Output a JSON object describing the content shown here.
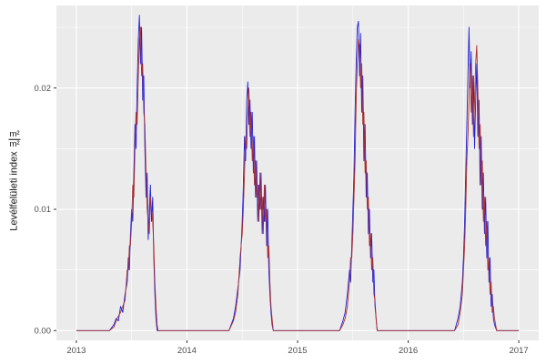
{
  "chart_data": {
    "type": "line",
    "title": "",
    "xlabel": "",
    "ylabel": "Levélfelületi index",
    "ylabel_unit_numerator": "m²",
    "ylabel_unit_denominator": "m²",
    "legend_position": "none",
    "grid": true,
    "panel_bg": "#EBEBEB",
    "grid_color": "#FFFFFF",
    "tick_color": "#333333",
    "label_color": "#4D4D4D",
    "xlim": [
      2012.82,
      2017.18
    ],
    "ylim": [
      -0.0008,
      0.0268
    ],
    "x_ticks": [
      2013,
      2014,
      2015,
      2016,
      2017
    ],
    "x_tick_labels": [
      "2013",
      "2014",
      "2015",
      "2016",
      "2017"
    ],
    "x_minor_ticks": [
      2013.5,
      2014.5,
      2015.5,
      2016.5
    ],
    "y_ticks": [
      0,
      0.01,
      0.02
    ],
    "y_tick_labels": [
      "0.00",
      "0.01",
      "0.02"
    ],
    "y_minor_ticks": [
      0.005,
      0.015,
      0.025
    ],
    "x": [
      2013.0,
      2013.3,
      2013.34,
      2013.36,
      2013.38,
      2013.4,
      2013.42,
      2013.44,
      2013.46,
      2013.47,
      2013.48,
      2013.49,
      2013.5,
      2013.51,
      2013.52,
      2013.53,
      2013.54,
      2013.55,
      2013.56,
      2013.57,
      2013.58,
      2013.59,
      2013.6,
      2013.61,
      2013.62,
      2013.63,
      2013.64,
      2013.65,
      2013.66,
      2013.67,
      2013.68,
      2013.69,
      2013.7,
      2013.71,
      2013.72,
      2013.73,
      2013.74,
      2014.38,
      2014.42,
      2014.44,
      2014.46,
      2014.48,
      2014.5,
      2014.51,
      2014.52,
      2014.53,
      2014.54,
      2014.55,
      2014.56,
      2014.57,
      2014.58,
      2014.59,
      2014.6,
      2014.61,
      2014.62,
      2014.63,
      2014.64,
      2014.65,
      2014.66,
      2014.67,
      2014.68,
      2014.69,
      2014.7,
      2014.71,
      2014.72,
      2014.73,
      2014.74,
      2014.75,
      2014.76,
      2014.77,
      2014.78,
      2015.38,
      2015.41,
      2015.43,
      2015.45,
      2015.47,
      2015.48,
      2015.49,
      2015.5,
      2015.51,
      2015.52,
      2015.53,
      2015.54,
      2015.55,
      2015.56,
      2015.57,
      2015.58,
      2015.59,
      2015.6,
      2015.61,
      2015.62,
      2015.63,
      2015.64,
      2015.65,
      2015.66,
      2015.67,
      2015.68,
      2015.69,
      2015.7,
      2015.71,
      2015.72,
      2016.42,
      2016.45,
      2016.47,
      2016.49,
      2016.5,
      2016.51,
      2016.52,
      2016.53,
      2016.54,
      2016.55,
      2016.56,
      2016.57,
      2016.58,
      2016.59,
      2016.6,
      2016.61,
      2016.62,
      2016.63,
      2016.64,
      2016.65,
      2016.66,
      2016.67,
      2016.68,
      2016.69,
      2016.7,
      2016.71,
      2016.72,
      2016.73,
      2016.74,
      2016.75,
      2016.76,
      2016.77,
      2016.78,
      2016.8,
      2017.0
    ],
    "series": [
      {
        "name": "blue",
        "color": "#2222D6",
        "values": [
          0,
          0,
          0.0005,
          0.001,
          0.0008,
          0.002,
          0.0015,
          0.003,
          0.004,
          0.006,
          0.005,
          0.008,
          0.01,
          0.009,
          0.013,
          0.017,
          0.015,
          0.02,
          0.024,
          0.026,
          0.022,
          0.025,
          0.019,
          0.021,
          0.015,
          0.011,
          0.013,
          0.0075,
          0.01,
          0.012,
          0.009,
          0.011,
          0.006,
          0.003,
          0.001,
          0,
          0,
          0,
          0.001,
          0.002,
          0.0035,
          0.005,
          0.009,
          0.012,
          0.016,
          0.014,
          0.019,
          0.0205,
          0.017,
          0.019,
          0.015,
          0.018,
          0.013,
          0.016,
          0.011,
          0.014,
          0.009,
          0.012,
          0.01,
          0.013,
          0.008,
          0.011,
          0.009,
          0.012,
          0.007,
          0.01,
          0.005,
          0.003,
          0.0015,
          0.0005,
          0,
          0,
          0.0008,
          0.0015,
          0.003,
          0.005,
          0.004,
          0.007,
          0.01,
          0.013,
          0.018,
          0.022,
          0.025,
          0.0255,
          0.021,
          0.0245,
          0.018,
          0.021,
          0.014,
          0.017,
          0.011,
          0.013,
          0.008,
          0.01,
          0.006,
          0.008,
          0.004,
          0.005,
          0.002,
          0.001,
          0,
          0,
          0.001,
          0.002,
          0.004,
          0.006,
          0.009,
          0.013,
          0.017,
          0.021,
          0.025,
          0.02,
          0.023,
          0.017,
          0.021,
          0.015,
          0.019,
          0.022,
          0.016,
          0.019,
          0.012,
          0.016,
          0.01,
          0.013,
          0.008,
          0.011,
          0.006,
          0.009,
          0.004,
          0.006,
          0.002,
          0.003,
          0.001,
          0.0005,
          0,
          0
        ]
      },
      {
        "name": "dark-red",
        "color": "#A93030",
        "values": [
          0,
          0,
          0.0003,
          0.0008,
          0.0012,
          0.0015,
          0.002,
          0.0025,
          0.005,
          0.005,
          0.007,
          0.007,
          0.009,
          0.012,
          0.011,
          0.015,
          0.018,
          0.017,
          0.021,
          0.024,
          0.025,
          0.021,
          0.022,
          0.018,
          0.017,
          0.013,
          0.01,
          0.009,
          0.008,
          0.011,
          0.01,
          0.009,
          0.007,
          0.004,
          0.002,
          0.0005,
          0,
          0,
          0.0008,
          0.0015,
          0.003,
          0.006,
          0.008,
          0.01,
          0.013,
          0.016,
          0.015,
          0.018,
          0.02,
          0.016,
          0.018,
          0.014,
          0.016,
          0.012,
          0.014,
          0.011,
          0.012,
          0.009,
          0.013,
          0.01,
          0.011,
          0.008,
          0.012,
          0.009,
          0.01,
          0.006,
          0.007,
          0.004,
          0.002,
          0.001,
          0,
          0,
          0.0005,
          0.001,
          0.002,
          0.004,
          0.006,
          0.006,
          0.008,
          0.011,
          0.014,
          0.019,
          0.022,
          0.024,
          0.0235,
          0.02,
          0.022,
          0.017,
          0.018,
          0.013,
          0.014,
          0.01,
          0.011,
          0.007,
          0.008,
          0.005,
          0.006,
          0.003,
          0.0025,
          0.001,
          0,
          0,
          0.0005,
          0.0015,
          0.003,
          0.005,
          0.007,
          0.01,
          0.014,
          0.016,
          0.019,
          0.022,
          0.018,
          0.021,
          0.016,
          0.019,
          0.022,
          0.0235,
          0.02,
          0.015,
          0.017,
          0.012,
          0.014,
          0.009,
          0.011,
          0.007,
          0.009,
          0.005,
          0.006,
          0.003,
          0.004,
          0.0015,
          0.002,
          0.001,
          0,
          0
        ]
      }
    ]
  }
}
